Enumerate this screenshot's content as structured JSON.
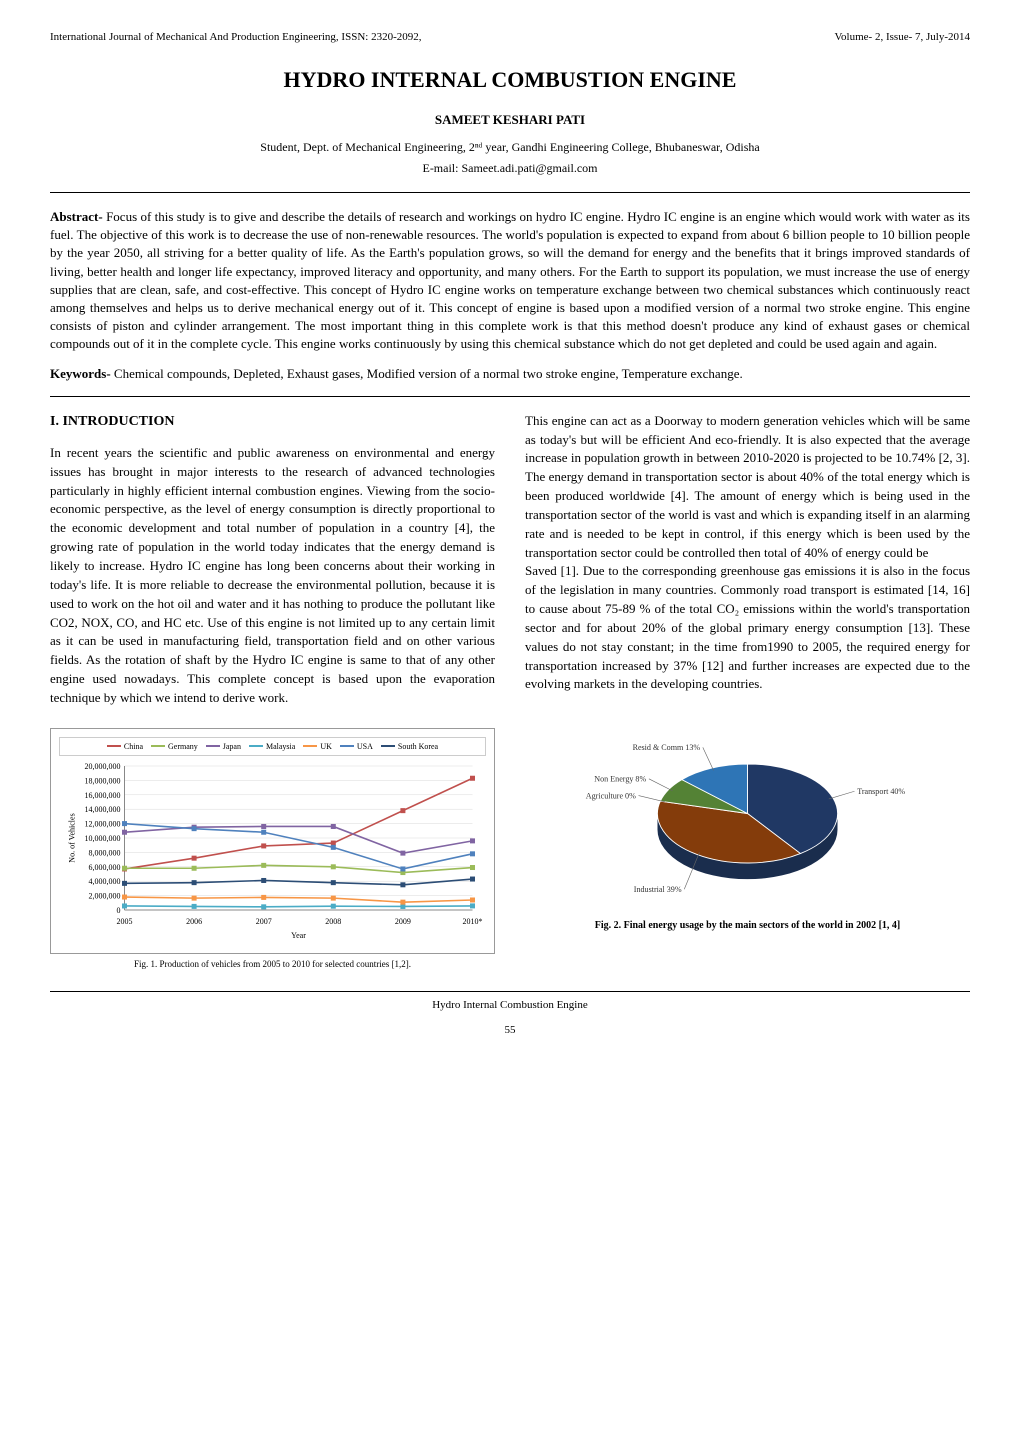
{
  "header": {
    "journal": "International Journal of Mechanical And Production Engineering, ISSN: 2320-2092,",
    "volume": "Volume- 2, Issue- 7, July-2014"
  },
  "title": "HYDRO INTERNAL COMBUSTION ENGINE",
  "author": "SAMEET KESHARI PATI",
  "affiliation": "Student, Dept. of Mechanical Engineering, 2ⁿᵈ year, Gandhi Engineering College, Bhubaneswar, Odisha",
  "email": "E-mail: Sameet.adi.pati@gmail.com",
  "abstract": {
    "label": "Abstract- ",
    "text": "Focus of this study is to give and describe the details of research and workings on hydro IC engine. Hydro IC engine is an engine which would work with water as its fuel. The objective of this work is to decrease the use of non-renewable resources. The world's population is expected to expand from about 6 billion people to 10 billion people by the year 2050, all striving for a better quality of life. As the Earth's population grows, so will the demand for energy and the benefits that it brings improved standards of living, better health and longer life expectancy, improved literacy and opportunity, and many others. For the Earth to support its population, we must increase the use of energy supplies that are clean, safe, and cost-effective. This concept of Hydro IC engine works on temperature exchange between two chemical substances which continuously react among themselves and helps us to derive mechanical energy out of it. This concept of engine is based upon a modified version of a normal two stroke engine. This engine consists of piston and cylinder arrangement. The most important thing in this complete work is that this method doesn't produce any kind of exhaust gases or chemical compounds out of it in the complete cycle. This engine works continuously by using this chemical substance which do not get depleted and could be used again and again."
  },
  "keywords": {
    "label": "Keywords- ",
    "text": "Chemical compounds, Depleted, Exhaust gases, Modified version of a normal two stroke engine, Temperature exchange."
  },
  "section_heading": "I.  INTRODUCTION",
  "col1_para": "In recent years the scientific and public awareness on environmental and energy issues has brought in major interests to the research of advanced technologies particularly in highly efficient internal combustion engines. Viewing from the socio-economic perspective, as the level of energy consumption is directly proportional to the economic development and total number of population in a country [4], the growing rate of population in the world today indicates that the energy demand is likely to increase. Hydro IC engine has long been concerns about their working in today's life. It is more reliable to decrease the environmental pollution, because it is used to work on the hot oil and water and it has nothing to produce the pollutant like CO2, NOX, CO, and HC etc. Use of this engine is not limited up to any certain limit as it can be used in manufacturing field, transportation field and on other various fields. As the rotation of shaft by the Hydro IC engine is same to that of any other engine used nowadays. This complete concept is based upon the evaporation technique by which we intend to derive work.",
  "col2_para1": "This engine can act as a Doorway to modern generation vehicles which will be same as today's but will be efficient And eco-friendly. It is also expected that the average increase in population growth in between 2010-2020 is projected to be 10.74% [2, 3]. The energy demand in transportation sector is about 40% of the total energy which is been produced worldwide [4]. The amount of energy which is being used in the transportation sector of the world is vast and which is expanding itself in an alarming rate and is needed to be kept in control, if this energy which is been used by the transportation sector could be controlled then total of 40% of energy could be",
  "col2_para2": "Saved [1]. Due to the corresponding greenhouse gas emissions it is also in the focus of the legislation in many countries. Commonly road transport is estimated [14, 16] to cause about 75-89 % of the total CO₂ emissions within the world's transportation sector and for about 20% of the global primary energy consumption [13]. These values do not stay constant; in the time from1990 to 2005, the required energy for transportation increased by 37% [12] and further increases are expected due to the evolving markets in the developing countries.",
  "fig1": {
    "caption": "Fig. 1. Production of vehicles from 2005 to 2010 for selected countries [1,2].",
    "type": "line",
    "years": [
      "2005",
      "2006",
      "2007",
      "2008",
      "2009",
      "2010*"
    ],
    "ylabel": "No. of Vehicles",
    "xlabel": "Year",
    "ylim": [
      0,
      20000000
    ],
    "ytick_step": 2000000,
    "yticks": [
      "0",
      "2,000,000",
      "4,000,000",
      "6,000,000",
      "8,000,000",
      "10,000,000",
      "12,000,000",
      "14,000,000",
      "16,000,000",
      "18,000,000",
      "20,000,000"
    ],
    "series": [
      {
        "name": "China",
        "color": "#c0504d",
        "values": [
          5700000,
          7200000,
          8900000,
          9300000,
          13800000,
          18300000
        ]
      },
      {
        "name": "Germany",
        "color": "#9bbb59",
        "values": [
          5800000,
          5800000,
          6200000,
          6000000,
          5200000,
          5900000
        ]
      },
      {
        "name": "Japan",
        "color": "#8064a2",
        "values": [
          10800000,
          11500000,
          11600000,
          11600000,
          7900000,
          9600000
        ]
      },
      {
        "name": "Malaysia",
        "color": "#4bacc6",
        "values": [
          560000,
          500000,
          440000,
          530000,
          490000,
          570000
        ]
      },
      {
        "name": "UK",
        "color": "#f79646",
        "values": [
          1800000,
          1650000,
          1750000,
          1650000,
          1090000,
          1390000
        ]
      },
      {
        "name": "USA",
        "color": "#4f81bd",
        "values": [
          12000000,
          11300000,
          10800000,
          8700000,
          5700000,
          7800000
        ]
      },
      {
        "name": "South Korea",
        "color": "#2c4d75",
        "values": [
          3700000,
          3800000,
          4100000,
          3800000,
          3500000,
          4300000
        ]
      }
    ],
    "background_color": "#ffffff",
    "grid_color": "#d9d9d9"
  },
  "fig2": {
    "caption": "Fig. 2. Final energy usage by the main sectors of the world in 2002 [1, 4]",
    "type": "pie",
    "slices": [
      {
        "label": "Transport",
        "value": 40,
        "color": "#203864",
        "label_text": "Transport 40%"
      },
      {
        "label": "Industrial",
        "value": 39,
        "color": "#843c0b",
        "label_text": "Industrial 39%"
      },
      {
        "label": "Agriculture",
        "value": 0,
        "color": "#bf9000",
        "label_text": "Agriculture 0%"
      },
      {
        "label": "Non Energy",
        "value": 8,
        "color": "#548235",
        "label_text": "Non Energy 8%"
      },
      {
        "label": "Resid & Comm",
        "value": 13,
        "color": "#2e75b6",
        "label_text": "Resid & Comm 13%"
      }
    ],
    "background_color": "#ffffff"
  },
  "footer": {
    "text": "Hydro Internal Combustion Engine",
    "page": "55"
  }
}
